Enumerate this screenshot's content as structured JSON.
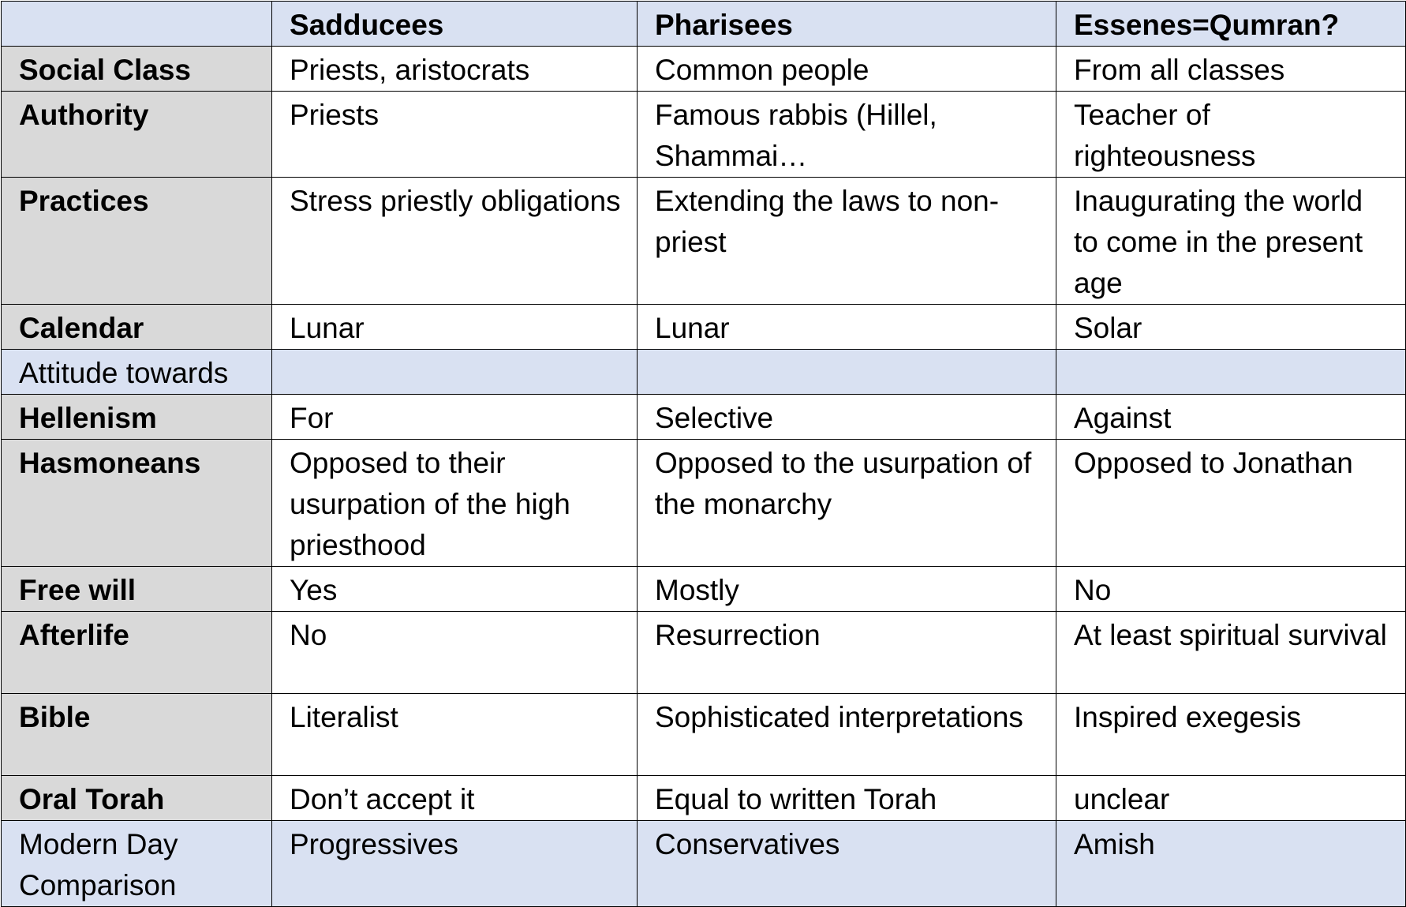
{
  "table": {
    "headers": [
      "",
      "Sadducees",
      "Pharisees",
      "Essenes=Qumran?"
    ],
    "rows": [
      {
        "label": "Social Class",
        "cells": [
          "Priests, aristocrats",
          "Common people",
          "From all classes"
        ]
      },
      {
        "label": "Authority",
        "cells": [
          "Priests",
          "Famous rabbis (Hillel, Shammai…",
          "Teacher of righteousness"
        ]
      },
      {
        "label": "Practices",
        "cells": [
          "Stress priestly obligations",
          "Extending the laws to non-priest",
          "Inaugurating the world to come in the present age"
        ]
      },
      {
        "label": "Calendar",
        "cells": [
          "Lunar",
          "Lunar",
          "Solar"
        ]
      },
      {
        "label": "Attitude towards",
        "cells": [
          "",
          "",
          ""
        ]
      },
      {
        "label": "Hellenism",
        "cells": [
          "For",
          "Selective",
          "Against"
        ]
      },
      {
        "label": "Hasmoneans",
        "cells": [
          "Opposed to their usurpation of the high priesthood",
          "Opposed to the usurpation of the monarchy",
          "Opposed to Jonathan"
        ]
      },
      {
        "label": "Free will",
        "cells": [
          "Yes",
          "Mostly",
          "No"
        ]
      },
      {
        "label": "Afterlife",
        "cells": [
          "No",
          "Resurrection",
          "At least spiritual survival"
        ]
      },
      {
        "label": "Bible",
        "cells": [
          "Literalist",
          "Sophisticated interpretations",
          "Inspired exegesis"
        ]
      },
      {
        "label": "Oral Torah",
        "cells": [
          "Don’t accept it",
          "Equal to written Torah",
          "unclear"
        ]
      },
      {
        "label": "Modern Day Comparison",
        "cells": [
          "Progressives",
          "Conservatives",
          "Amish"
        ]
      }
    ]
  },
  "colors": {
    "header_bg": "#d9e1f2",
    "label_bg": "#d9d9d9",
    "cell_bg": "#ffffff",
    "border": "#000000"
  }
}
